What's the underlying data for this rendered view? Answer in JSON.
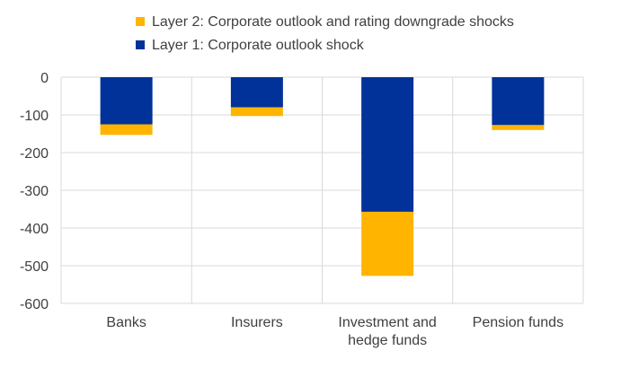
{
  "chart_data": {
    "type": "bar",
    "stacked": true,
    "categories": [
      "Banks",
      "Insurers",
      "Investment and hedge funds",
      "Pension funds"
    ],
    "category_lines": [
      [
        "Banks"
      ],
      [
        "Insurers"
      ],
      [
        "Investment and",
        "hedge funds"
      ],
      [
        "Pension funds"
      ]
    ],
    "series": [
      {
        "name": "Layer 1: Corporate outlook shock",
        "color": "#003299",
        "values": [
          -125,
          -80,
          -357,
          -127
        ]
      },
      {
        "name": "Layer 2: Corporate outlook and rating downgrade shocks",
        "color": "#FFB400",
        "values": [
          -28,
          -23,
          -170,
          -13
        ]
      }
    ],
    "legend_order": [
      1,
      0
    ],
    "ylim": [
      -600,
      0
    ],
    "yticks": [
      0,
      -100,
      -200,
      -300,
      -400,
      -500,
      -600
    ],
    "grid": true,
    "vertical_separators": true,
    "legend_position": "top-center",
    "title": "",
    "xlabel": "",
    "ylabel": ""
  }
}
